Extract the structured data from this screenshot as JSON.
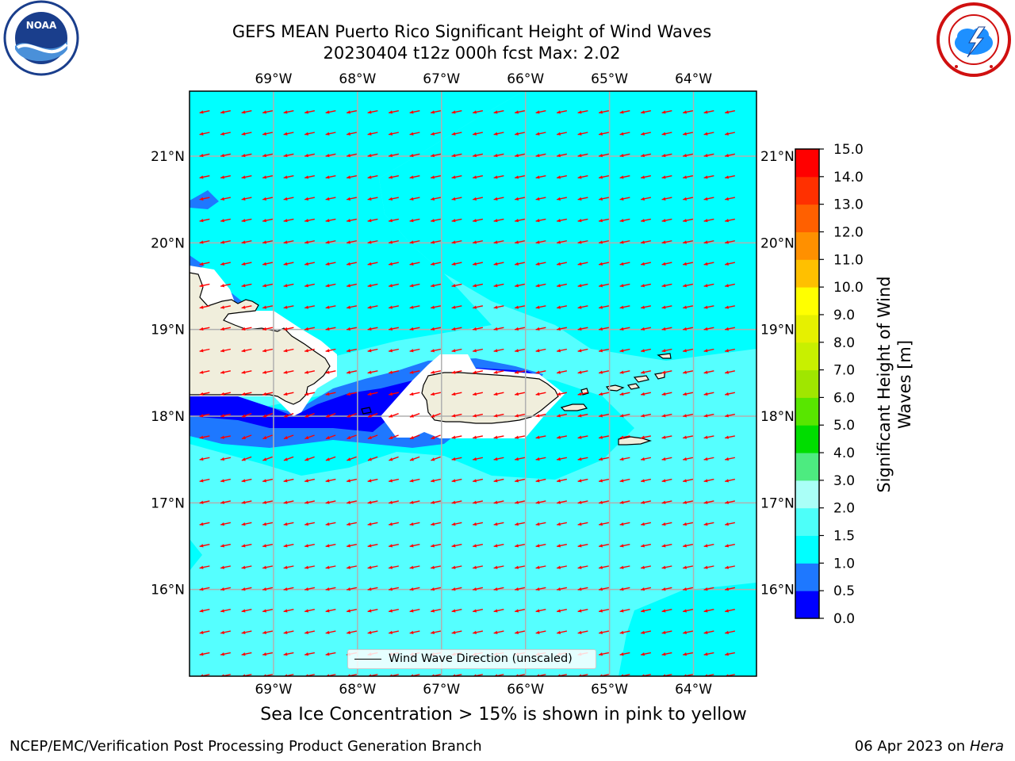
{
  "title": {
    "line1": "GEFS MEAN Puerto Rico Significant Height of Wind Waves",
    "line2": "20230404 t12z 000h fcst   Max: 2.02"
  },
  "logos": {
    "left": "noaa-logo",
    "left_text": "NOAA",
    "right": "nws-logo"
  },
  "axes": {
    "lon_ticks": [
      "69°W",
      "68°W",
      "67°W",
      "66°W",
      "65°W",
      "64°W"
    ],
    "lat_ticks": [
      "21°N",
      "20°N",
      "19°N",
      "18°N",
      "17°N",
      "16°N"
    ],
    "lon_range": [
      -70.0,
      -63.25
    ],
    "lat_range": [
      15.0,
      21.75
    ],
    "grid": true
  },
  "legend": {
    "label": "Wind Wave Direction (unscaled)",
    "placement": "lower-center"
  },
  "colorbar": {
    "label": "Significant Height of Wind Waves [m]",
    "ticks": [
      "0.0",
      "0.5",
      "1.0",
      "1.5",
      "2.0",
      "3.0",
      "4.0",
      "5.0",
      "6.0",
      "7.0",
      "8.0",
      "9.0",
      "10.0",
      "11.0",
      "12.0",
      "13.0",
      "14.0",
      "15.0"
    ],
    "colors": [
      "#0000ff",
      "#1e78ff",
      "#00ffff",
      "#4dfff9",
      "#aafff7",
      "#4deb80",
      "#00dd00",
      "#58e600",
      "#a0e600",
      "#c8f000",
      "#e6f000",
      "#ffff00",
      "#ffc000",
      "#ff9000",
      "#ff6000",
      "#ff3000",
      "#ff0000"
    ]
  },
  "colors": {
    "ocean_light": "#55ffff",
    "ocean_cyan": "#00ffff",
    "shallow_blue": "#1e78ff",
    "deep_blue": "#0000ff",
    "land": "#f0eedc",
    "arrow": "#ff0000"
  },
  "ice_note": "Sea Ice Concentration > 15% is shown in pink to yellow",
  "footer": {
    "left": "NCEP/EMC/Verification Post Processing Product Generation Branch",
    "right_prefix": "06 Apr 2023 on",
    "right_host": "Hera"
  }
}
